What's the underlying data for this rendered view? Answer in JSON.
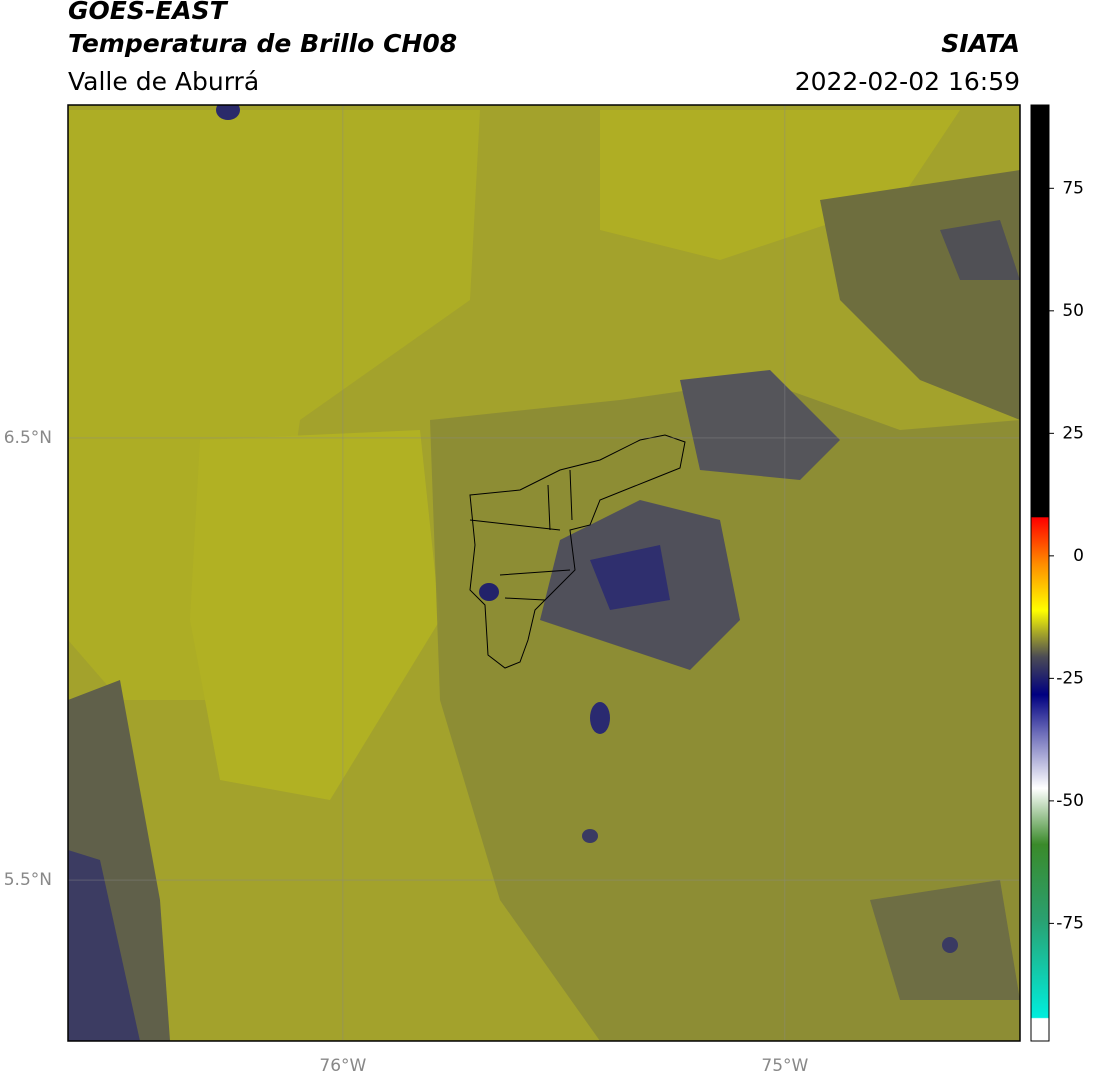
{
  "header": {
    "title": "GOES-EAST",
    "subtitle": "Temperatura de Brillo CH08",
    "region": "Valle de Aburrá",
    "source": "SIATA",
    "timestamp": "2022-02-02 16:59"
  },
  "map": {
    "xlim": [
      -76.622,
      -74.468
    ],
    "ylim": [
      5.136,
      7.253
    ],
    "xticks": [
      {
        "value": -76,
        "label": "76°W"
      },
      {
        "value": -75,
        "label": "75°W"
      }
    ],
    "yticks": [
      {
        "value": 6.5,
        "label": "6.5°N"
      },
      {
        "value": 5.5,
        "label": "5.5°N"
      }
    ]
  },
  "colorbar": {
    "lim": [
      -99,
      92
    ],
    "ticks": [
      75,
      50,
      25,
      0,
      -25,
      -50,
      -75
    ]
  }
}
